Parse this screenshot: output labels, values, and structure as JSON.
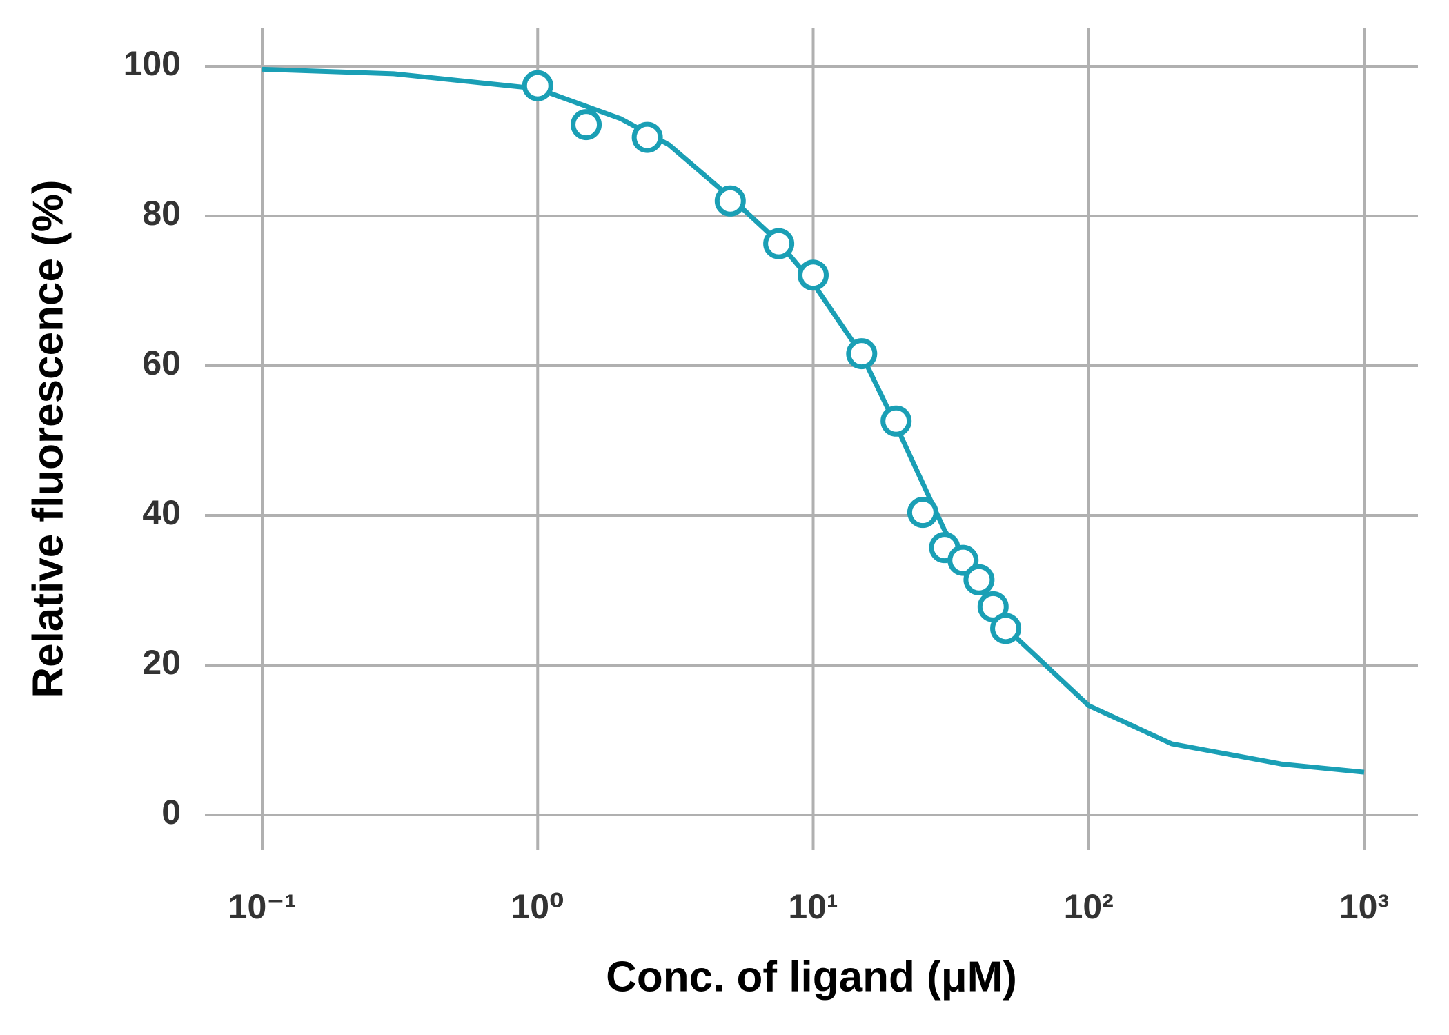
{
  "chart_data": {
    "type": "scatter",
    "x_label": "Conc. of ligand (μM)",
    "y_label": "Relative fluorescence (%)",
    "xscale": "log",
    "grid": true,
    "xlim": [
      0.1,
      1000
    ],
    "ylim": [
      0,
      100
    ],
    "xticks": [
      {
        "value": 0.1,
        "label": "10⁻¹"
      },
      {
        "value": 1,
        "label": "10⁰"
      },
      {
        "value": 10,
        "label": "10¹"
      },
      {
        "value": 100,
        "label": "10²"
      },
      {
        "value": 1000,
        "label": "10³"
      }
    ],
    "yticks": [
      0,
      20,
      40,
      60,
      80,
      100
    ],
    "series": [
      {
        "type": "line",
        "color": "#1a9fb5",
        "x": [
          0.1,
          0.3,
          1,
          2,
          3,
          5,
          7.5,
          10,
          15,
          20,
          30,
          50,
          100,
          200,
          500,
          1000
        ],
        "values": [
          99.6,
          99,
          97,
          93,
          89.5,
          82.5,
          76.5,
          71,
          61.5,
          52,
          38,
          25,
          14.6,
          9.5,
          6.8,
          5.7
        ]
      },
      {
        "type": "scatter",
        "color": "#1a9fb5",
        "x": [
          1,
          1.5,
          2.5,
          5,
          7.5,
          10,
          15,
          20,
          25,
          30,
          35,
          40,
          45,
          50
        ],
        "values": [
          97.4,
          92.2,
          90.5,
          82.0,
          76.3,
          72.1,
          61.6,
          52.6,
          40.4,
          35.7,
          34.0,
          31.4,
          27.8,
          24.9
        ]
      }
    ]
  }
}
